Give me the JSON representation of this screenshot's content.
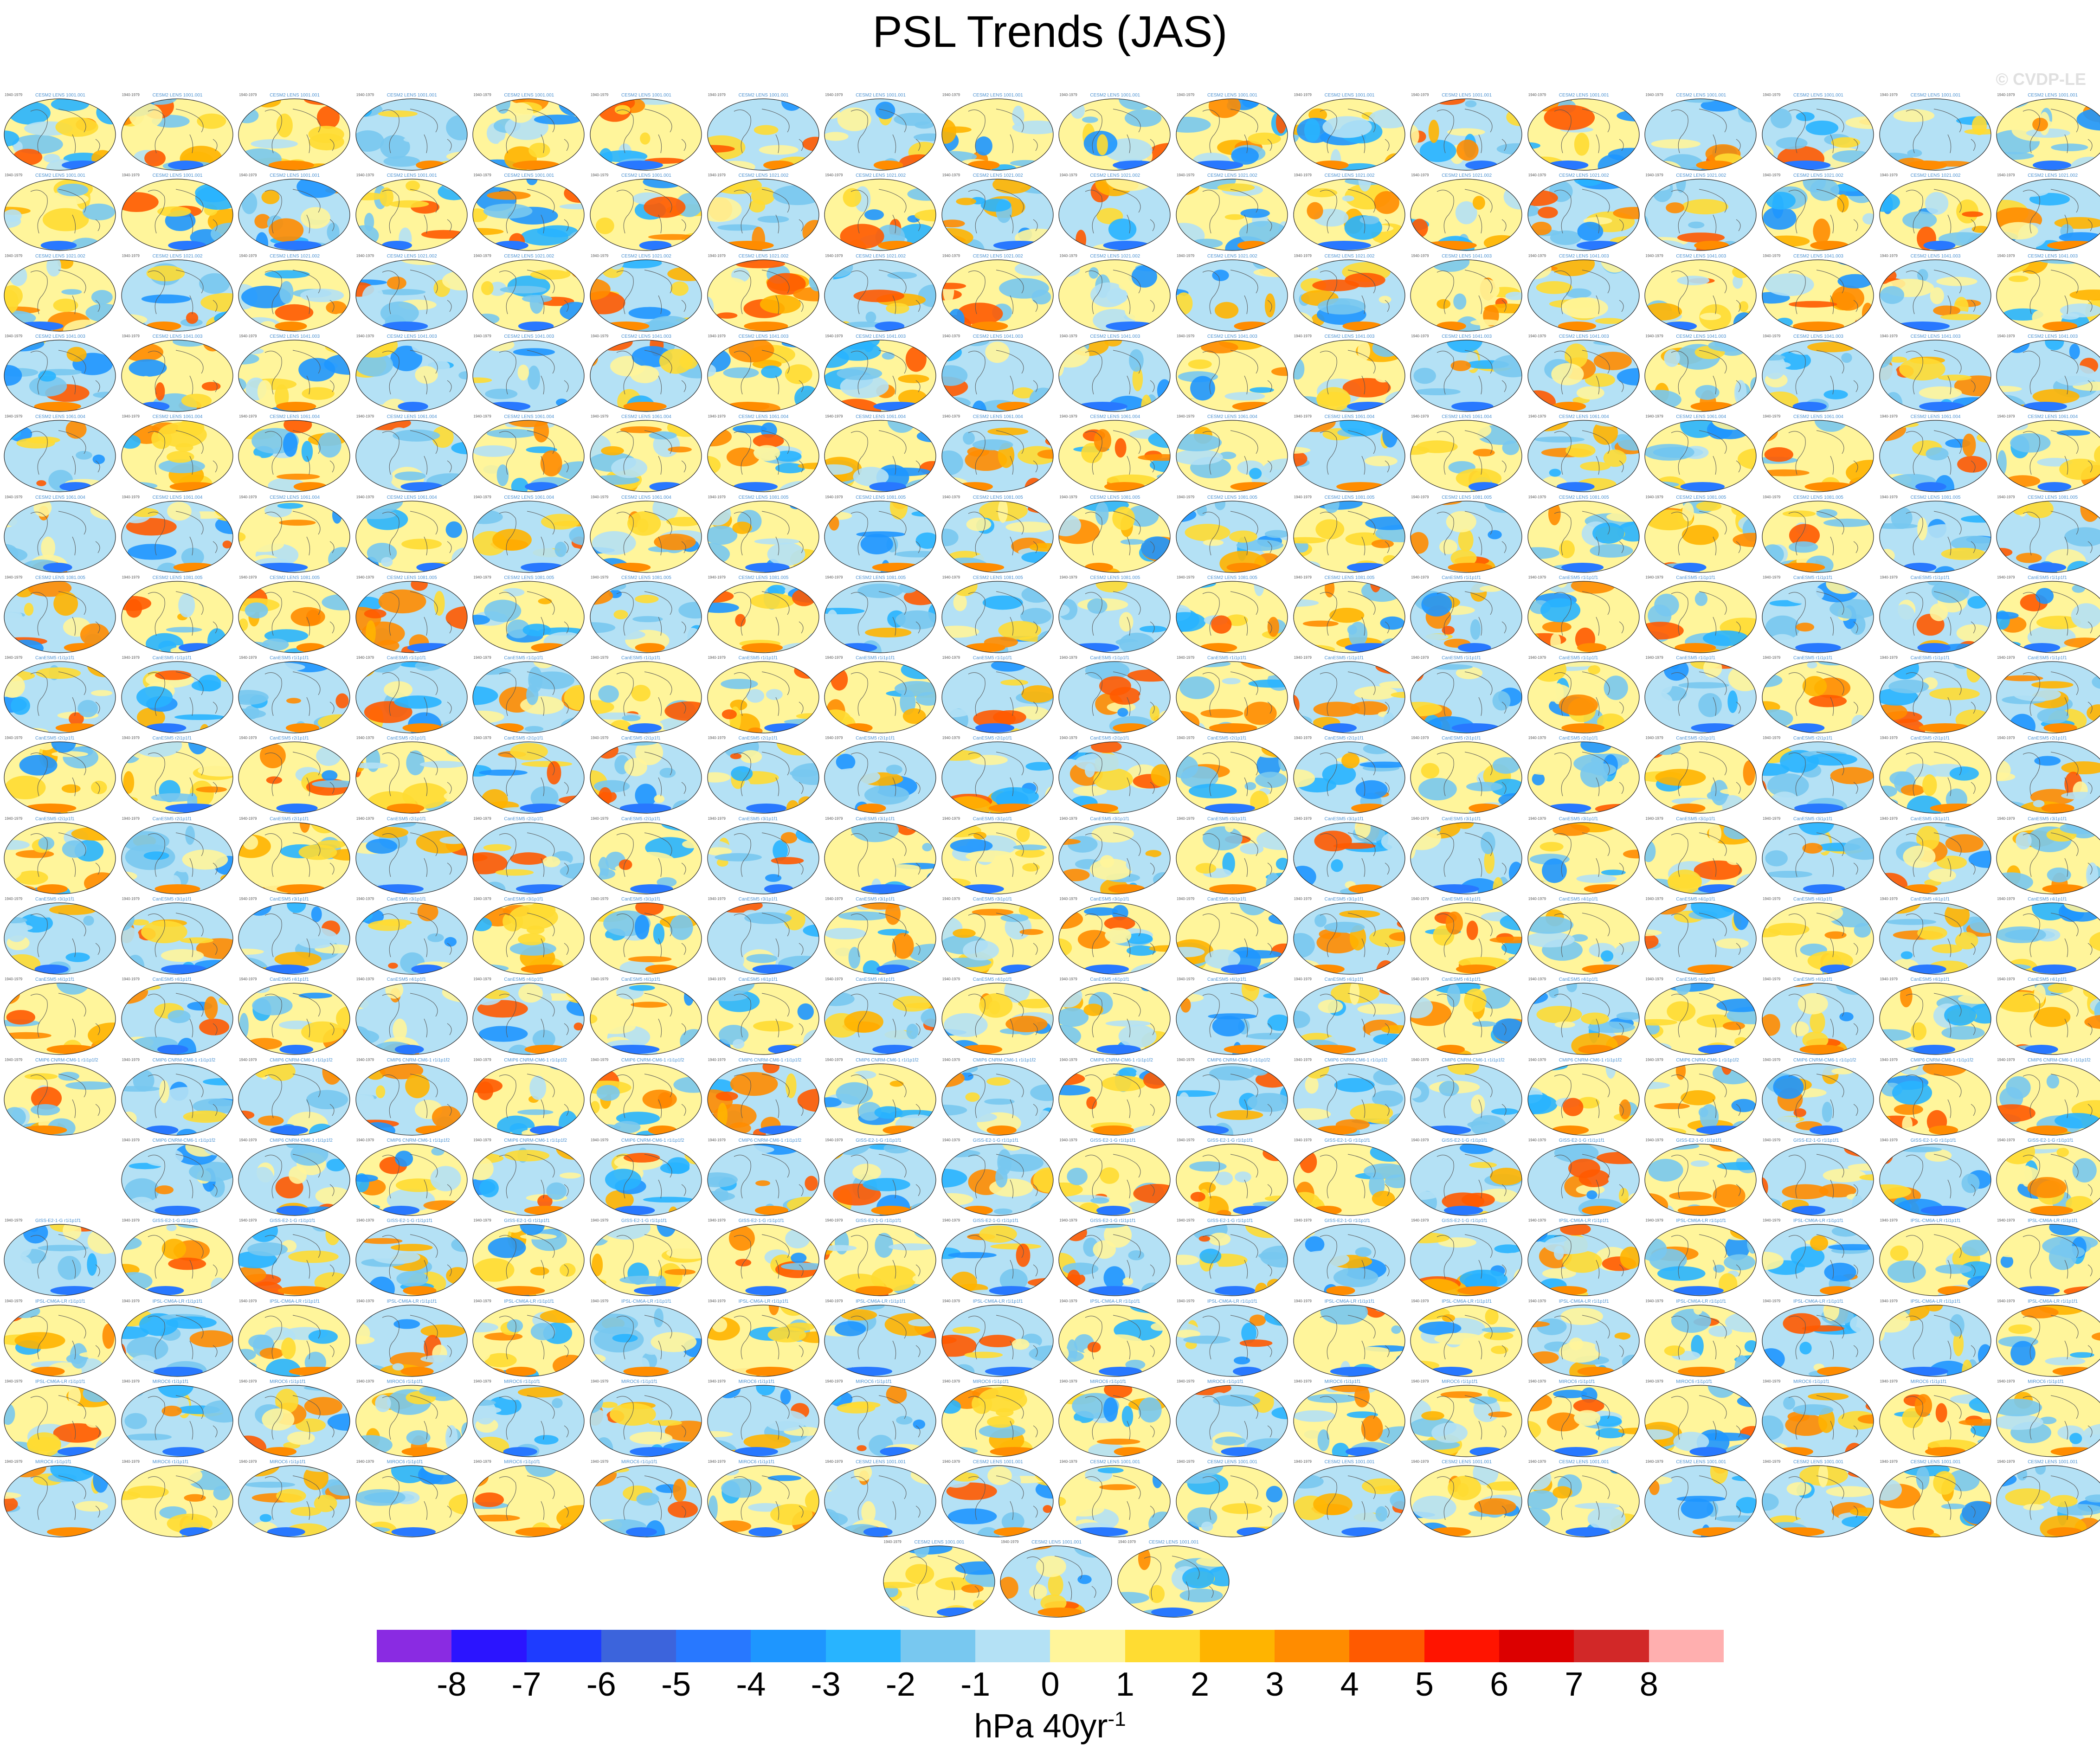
{
  "title": "PSL Trends (JAS)",
  "watermark": "© CVDP-LE",
  "panel_year_range": "1940-1979",
  "panel_row_counts": [
    18,
    18,
    18,
    18,
    18,
    18,
    18,
    18,
    18,
    18,
    18,
    18,
    18,
    17,
    18,
    18,
    18,
    18,
    3
  ],
  "panel_labels": [
    "CESM2 LENS 1001.001",
    "CESM2 LENS 1021.002",
    "CESM2 LENS 1041.003",
    "CESM2 LENS 1061.004",
    "CESM2 LENS 1081.005",
    "CanESM5 r1i1p1f1",
    "CanESM5 r2i1p1f1",
    "CanESM5 r3i1p1f1",
    "CanESM5 r4i1p1f1",
    "CMIP6 CNRM-CM6-1 r1i1p1f2",
    "GISS-E2-1-G r1i1p1f1",
    "IPSL-CM6A-LR r1i1p1f1",
    "MIROC6 r1i1p1f1"
  ],
  "colorbar": {
    "colors": [
      "#8a2be2",
      "#2b14ff",
      "#1e3cff",
      "#3c64dc",
      "#2878ff",
      "#1e96ff",
      "#28b4ff",
      "#78c8f0",
      "#b4e1f5",
      "#fff59b",
      "#ffdc32",
      "#ffb400",
      "#ff8c00",
      "#ff5a00",
      "#ff1400",
      "#dc0000",
      "#d22828",
      "#ffafaf"
    ],
    "tick_labels": [
      "-8",
      "-7",
      "-6",
      "-5",
      "-4",
      "-3",
      "-2",
      "-1",
      "0",
      "1",
      "2",
      "3",
      "4",
      "5",
      "6",
      "7",
      "8"
    ]
  },
  "units": {
    "text": "hPa 40yr",
    "superscript": "-1"
  }
}
